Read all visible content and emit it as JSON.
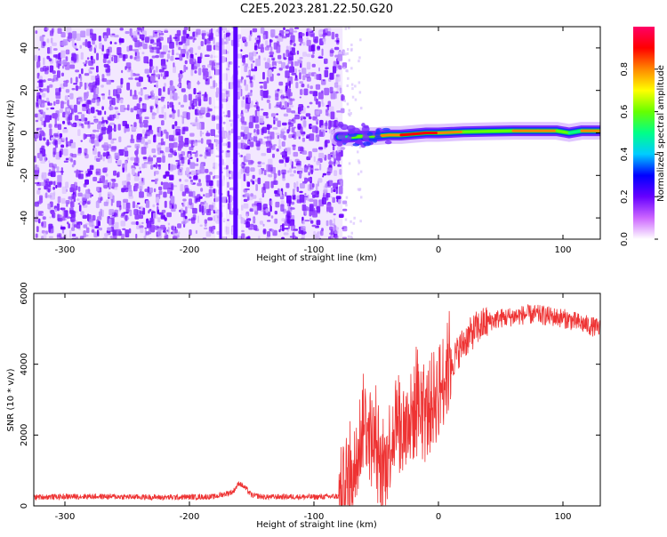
{
  "title": "C2E5.2023.281.22.50.G20",
  "chart_data": [
    {
      "type": "heatmap",
      "xlabel": "Height of straight line (km)",
      "ylabel": "Frequency (Hz)",
      "xlim": [
        -325,
        130
      ],
      "ylim": [
        -50,
        50
      ],
      "x_ticks": [
        -300,
        -200,
        -100,
        0,
        100
      ],
      "y_ticks": [
        -40,
        -20,
        0,
        20,
        40
      ],
      "noise_region_x": [
        -325,
        -77
      ],
      "vertical_streaks_x": [
        -175,
        -163
      ],
      "signal_track": [
        {
          "x": -80,
          "y": -2,
          "amp": 0.45
        },
        {
          "x": -70,
          "y": -2,
          "amp": 0.5
        },
        {
          "x": -60,
          "y": -1.5,
          "amp": 0.6
        },
        {
          "x": -50,
          "y": -1.5,
          "amp": 0.7
        },
        {
          "x": -40,
          "y": -1,
          "amp": 0.8
        },
        {
          "x": -30,
          "y": -1,
          "amp": 0.85
        },
        {
          "x": -20,
          "y": -0.5,
          "amp": 0.85
        },
        {
          "x": -10,
          "y": 0,
          "amp": 0.9
        },
        {
          "x": 0,
          "y": 0,
          "amp": 0.9
        },
        {
          "x": 20,
          "y": 0.5,
          "amp": 0.6
        },
        {
          "x": 40,
          "y": 0.8,
          "amp": 0.6
        },
        {
          "x": 60,
          "y": 1,
          "amp": 0.7
        },
        {
          "x": 80,
          "y": 1,
          "amp": 0.85
        },
        {
          "x": 95,
          "y": 1,
          "amp": 0.8
        },
        {
          "x": 105,
          "y": 0,
          "amp": 0.3
        },
        {
          "x": 115,
          "y": 1,
          "amp": 0.75
        },
        {
          "x": 130,
          "y": 1,
          "amp": 0.8
        }
      ],
      "colorbar": {
        "label": "Normalized spectral amplitude",
        "range": [
          0,
          1
        ],
        "ticks": [
          0.0,
          0.2,
          0.4,
          0.6,
          0.8
        ],
        "colors": [
          "#ffffff",
          "#cc66ff",
          "#6600ff",
          "#0000ff",
          "#00ccff",
          "#00ff88",
          "#66ff00",
          "#ffff00",
          "#ff8800",
          "#ff0000",
          "#ff0066"
        ]
      }
    },
    {
      "type": "line",
      "xlabel": "Height of straight line (km)",
      "ylabel": "SNR (10 * v/v)",
      "xlim": [
        -325,
        130
      ],
      "ylim": [
        0,
        6000
      ],
      "x_ticks": [
        -300,
        -200,
        -100,
        0,
        100
      ],
      "y_ticks": [
        0,
        2000,
        4000,
        6000
      ],
      "color": "#ee3333",
      "series": [
        {
          "x": [
            -325,
            -300,
            -280,
            -260,
            -240,
            -220,
            -200,
            -180,
            -165,
            -160,
            -155,
            -150,
            -140,
            -120,
            -100,
            -80,
            -70,
            -65,
            -60,
            -55,
            -50,
            -45,
            -40,
            -35,
            -30,
            -25,
            -20,
            -15,
            -10,
            -5,
            0,
            5,
            10,
            15,
            20,
            25,
            30,
            40,
            50,
            60,
            70,
            80,
            90,
            100,
            110,
            120,
            130
          ],
          "y": [
            250,
            260,
            270,
            260,
            250,
            240,
            250,
            260,
            400,
            650,
            500,
            300,
            250,
            260,
            250,
            270,
            400,
            1500,
            2500,
            2000,
            1500,
            800,
            1600,
            2500,
            2000,
            2200,
            2600,
            2800,
            2500,
            3000,
            3200,
            3700,
            4000,
            4300,
            4600,
            4800,
            5000,
            5200,
            5300,
            5350,
            5400,
            5400,
            5350,
            5300,
            5200,
            5100,
            5000
          ]
        }
      ]
    }
  ]
}
